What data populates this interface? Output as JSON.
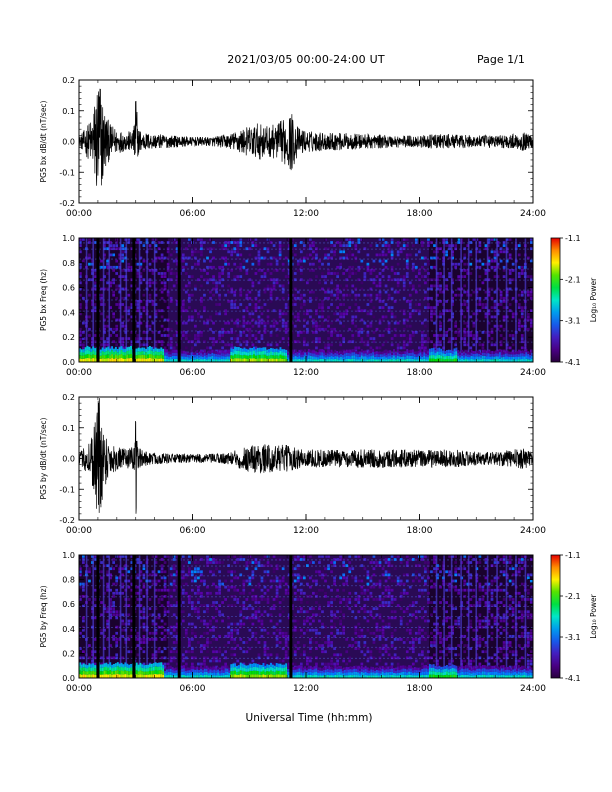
{
  "header": {
    "date_range": "2021/03/05  00:00-24:00 UT",
    "page": "Page 1/1"
  },
  "chart_data": [
    {
      "type": "line",
      "panel": "bx-waveform",
      "ylabel": "PG5 bx dB/dt (nT/sec)",
      "xlim": [
        0,
        24
      ],
      "ylim": [
        -0.2,
        0.2
      ],
      "yticks": [
        "-0.2",
        "-0.1",
        "0.0",
        "0.1",
        "0.2"
      ],
      "xticks": [
        "00:00",
        "06:00",
        "12:00",
        "18:00",
        "24:00"
      ],
      "color": "#000000",
      "envelope": {
        "x": [
          0,
          0.3,
          0.7,
          1.0,
          1.1,
          1.3,
          1.6,
          2.0,
          2.5,
          2.9,
          3.0,
          3.1,
          3.4,
          4.0,
          5.0,
          6.0,
          7.0,
          8.0,
          8.5,
          9.0,
          9.5,
          10.0,
          10.5,
          11.0,
          11.2,
          11.6,
          12.0,
          13.0,
          14.0,
          15.0,
          16.0,
          17.0,
          18.0,
          18.5,
          19.0,
          20.0,
          21.0,
          22.0,
          23.0,
          23.5,
          24.0
        ],
        "amplitude": [
          0.015,
          0.04,
          0.08,
          0.22,
          0.22,
          0.12,
          0.06,
          0.04,
          0.03,
          0.04,
          0.22,
          0.05,
          0.03,
          0.025,
          0.02,
          0.015,
          0.015,
          0.025,
          0.04,
          0.05,
          0.06,
          0.05,
          0.06,
          0.08,
          0.1,
          0.045,
          0.035,
          0.03,
          0.028,
          0.025,
          0.022,
          0.02,
          0.02,
          0.022,
          0.025,
          0.022,
          0.02,
          0.02,
          0.025,
          0.03,
          0.02
        ]
      }
    },
    {
      "type": "heatmap",
      "panel": "bx-spectrogram",
      "ylabel": "PG5 bx Freq (hz)",
      "xlim": [
        0,
        24
      ],
      "ylim": [
        0,
        1.0
      ],
      "yticks": [
        "0.0",
        "0.2",
        "0.4",
        "0.6",
        "0.8",
        "1.0"
      ],
      "xticks": [
        "00:00",
        "06:00",
        "12:00",
        "18:00",
        "24:00"
      ],
      "colorbar": {
        "label": "Log₁₀ Power",
        "ticks": [
          "-1.1",
          "-2.1",
          "-3.1",
          "-4.1"
        ],
        "range": [
          -4.1,
          -1.1
        ]
      },
      "gaps_hours": [
        1.0,
        2.9,
        5.3,
        11.2
      ],
      "spikes_hours": [
        0.4,
        0.75,
        1.3,
        1.6,
        2.2,
        2.5,
        3.2,
        3.6,
        4.0,
        18.9,
        19.3,
        19.7,
        20.2,
        20.6,
        21.0,
        21.6,
        22.1,
        22.6,
        23.1,
        23.6
      ],
      "lines_hz": [
        0.08,
        0.16,
        0.25,
        0.33,
        0.41,
        0.5,
        0.58,
        0.66,
        0.75,
        0.83,
        0.91,
        0.96
      ],
      "dark_hours": [
        [
          0,
          4.7
        ],
        [
          18.5,
          24
        ]
      ]
    },
    {
      "type": "line",
      "panel": "by-waveform",
      "ylabel": "PG5 by dB/dt (nT/sec)",
      "xlim": [
        0,
        24
      ],
      "ylim": [
        -0.2,
        0.2
      ],
      "yticks": [
        "-0.2",
        "-0.1",
        "0.0",
        "0.1",
        "0.2"
      ],
      "xticks": [
        "00:00",
        "06:00",
        "12:00",
        "18:00",
        "24:00"
      ],
      "color": "#000000",
      "envelope": {
        "x": [
          0,
          0.3,
          0.7,
          1.0,
          1.1,
          1.3,
          1.6,
          2.0,
          2.5,
          2.9,
          3.0,
          3.1,
          3.4,
          4.0,
          5.0,
          6.0,
          7.0,
          8.0,
          8.5,
          9.0,
          9.5,
          10.0,
          10.5,
          11.0,
          11.2,
          11.6,
          12.0,
          13.0,
          14.0,
          15.0,
          16.0,
          17.0,
          18.0,
          18.5,
          19.0,
          20.0,
          21.0,
          22.0,
          23.0,
          23.5,
          24.0
        ],
        "amplitude": [
          0.015,
          0.04,
          0.09,
          0.22,
          0.22,
          0.1,
          0.06,
          0.04,
          0.03,
          0.04,
          0.22,
          0.04,
          0.025,
          0.02,
          0.015,
          0.015,
          0.015,
          0.02,
          0.035,
          0.045,
          0.05,
          0.045,
          0.045,
          0.045,
          0.04,
          0.035,
          0.03,
          0.03,
          0.028,
          0.03,
          0.03,
          0.03,
          0.028,
          0.028,
          0.03,
          0.028,
          0.022,
          0.022,
          0.03,
          0.035,
          0.02
        ]
      }
    },
    {
      "type": "heatmap",
      "panel": "by-spectrogram",
      "ylabel": "PG5 by Freq (hz)",
      "xlim": [
        0,
        24
      ],
      "ylim": [
        0,
        1.0
      ],
      "yticks": [
        "0.0",
        "0.2",
        "0.4",
        "0.6",
        "0.8",
        "1.0"
      ],
      "xticks": [
        "00:00",
        "06:00",
        "12:00",
        "18:00",
        "24:00"
      ],
      "colorbar": {
        "label": "Log₁₀ Power",
        "ticks": [
          "-1.1",
          "-2.1",
          "-3.1",
          "-4.1"
        ],
        "range": [
          -4.1,
          -1.1
        ]
      },
      "gaps_hours": [
        1.0,
        2.9,
        5.3,
        11.2
      ],
      "spikes_hours": [
        0.4,
        0.75,
        1.3,
        1.6,
        2.2,
        2.5,
        3.2,
        3.6,
        4.0,
        18.9,
        19.3,
        19.7,
        20.2,
        20.6,
        21.0,
        21.6,
        22.1,
        22.6,
        23.1,
        23.6
      ],
      "lines_hz": [
        0.08,
        0.16,
        0.25,
        0.33,
        0.41,
        0.5,
        0.58,
        0.66,
        0.75,
        0.83,
        0.91,
        0.96
      ],
      "dark_hours": [
        [
          0,
          4.7
        ],
        [
          18.5,
          24
        ]
      ]
    }
  ],
  "xlabel": "Universal Time (hh:mm)"
}
